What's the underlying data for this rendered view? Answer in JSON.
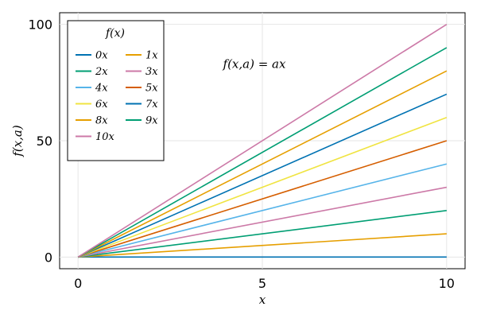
{
  "chart_data": {
    "type": "line",
    "title": "",
    "xlabel": "x",
    "ylabel": "f(x,a)",
    "xlim": [
      -0.5,
      10.5
    ],
    "ylim": [
      -5,
      105
    ],
    "x_ticks": [
      0,
      5,
      10
    ],
    "y_ticks": [
      0,
      50,
      100
    ],
    "grid": true,
    "annotation": {
      "text": "f(x,a) = ax",
      "x": 5,
      "y": 83
    },
    "legend": {
      "title": "f(x)",
      "position": "top-left",
      "columns": 2
    },
    "x": [
      0,
      10
    ],
    "series": [
      {
        "name": "0x",
        "a": 0,
        "values": [
          0,
          0
        ],
        "color": "#0072B2"
      },
      {
        "name": "1x",
        "a": 1,
        "values": [
          0,
          10
        ],
        "color": "#E69F00"
      },
      {
        "name": "2x",
        "a": 2,
        "values": [
          0,
          20
        ],
        "color": "#009E73"
      },
      {
        "name": "3x",
        "a": 3,
        "values": [
          0,
          30
        ],
        "color": "#CC79A7"
      },
      {
        "name": "4x",
        "a": 4,
        "values": [
          0,
          40
        ],
        "color": "#56B4E9"
      },
      {
        "name": "5x",
        "a": 5,
        "values": [
          0,
          50
        ],
        "color": "#D55E00"
      },
      {
        "name": "6x",
        "a": 6,
        "values": [
          0,
          60
        ],
        "color": "#F0E442"
      },
      {
        "name": "7x",
        "a": 7,
        "values": [
          0,
          70
        ],
        "color": "#0072B2"
      },
      {
        "name": "8x",
        "a": 8,
        "values": [
          0,
          80
        ],
        "color": "#E69F00"
      },
      {
        "name": "9x",
        "a": 9,
        "values": [
          0,
          90
        ],
        "color": "#009E73"
      },
      {
        "name": "10x",
        "a": 10,
        "values": [
          0,
          100
        ],
        "color": "#CC79A7"
      }
    ]
  }
}
